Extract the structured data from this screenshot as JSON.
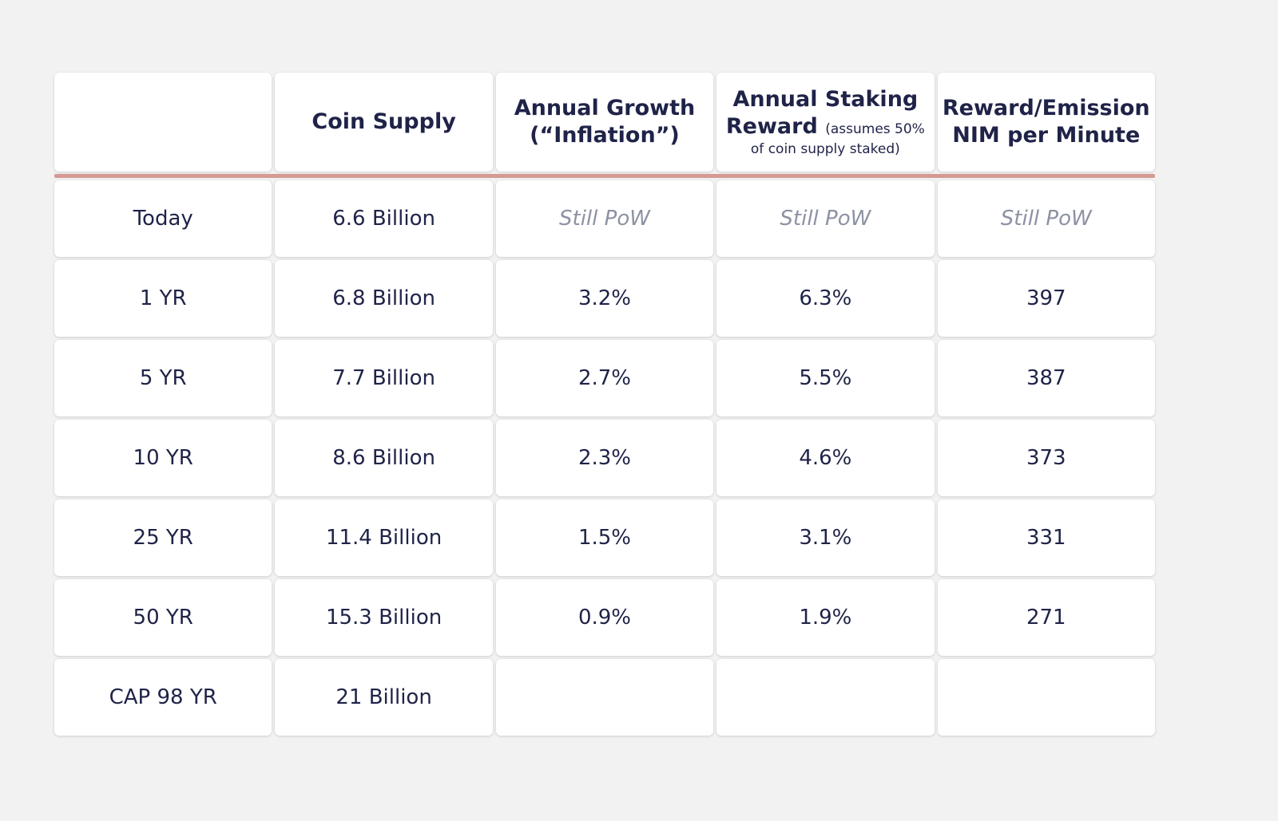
{
  "table": {
    "headers": {
      "col0": "",
      "col1": "Coin Supply",
      "col2_line1": "Annual Growth",
      "col2_line2": "(“Inflation”)",
      "col3_line1": "Annual Staking",
      "col3_line2_main": "Reward",
      "col3_line2_note": "(assumes 50%",
      "col3_line3_note": "of coin supply staked)",
      "col4_line1": "Reward/Emission",
      "col4_line2": "NIM per Minute"
    },
    "rows": [
      {
        "period": "Today",
        "supply": "6.6 Billion",
        "growth": "Still PoW",
        "staking": "Still PoW",
        "reward": "Still PoW"
      },
      {
        "period": "1 YR",
        "supply": "6.8 Billion",
        "growth": "3.2%",
        "staking": "6.3%",
        "reward": "397"
      },
      {
        "period": "5 YR",
        "supply": "7.7 Billion",
        "growth": "2.7%",
        "staking": "5.5%",
        "reward": "387"
      },
      {
        "period": "10 YR",
        "supply": "8.6 Billion",
        "growth": "2.3%",
        "staking": "4.6%",
        "reward": "373"
      },
      {
        "period": "25 YR",
        "supply": "11.4 Billion",
        "growth": "1.5%",
        "staking": "3.1%",
        "reward": "331"
      },
      {
        "period": "50 YR",
        "supply": "15.3 Billion",
        "growth": "0.9%",
        "staking": "1.9%",
        "reward": "271"
      },
      {
        "period": "CAP 98 YR",
        "supply": "21 Billion",
        "growth": "",
        "staking": "",
        "reward": ""
      }
    ]
  },
  "colors": {
    "accent_underline": "#d49a93",
    "text": "#1f2348",
    "muted_text": "#8d92a3",
    "background": "#f2f2f2",
    "cell": "#ffffff"
  }
}
